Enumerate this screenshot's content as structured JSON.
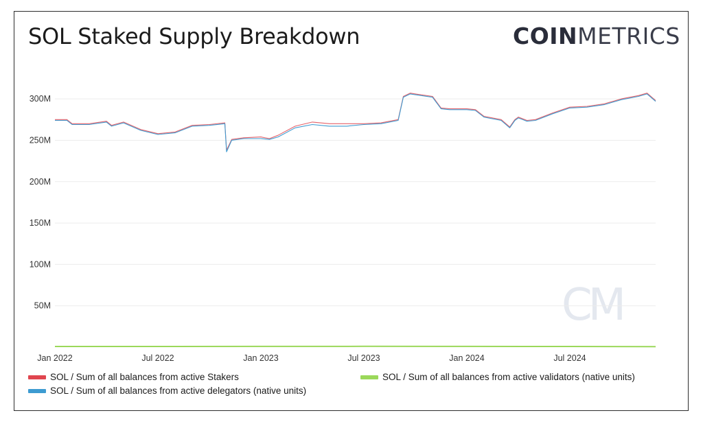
{
  "title": "SOL Staked Supply Breakdown",
  "logo": {
    "bold": "COIN",
    "light": "METRICS",
    "watermark": "CM"
  },
  "chart_data": {
    "type": "line",
    "title": "SOL Staked Supply Breakdown",
    "xlabel": "",
    "ylabel": "",
    "ylim": [
      0,
      320
    ],
    "y_unit": "M",
    "yticks": [
      "50M",
      "100M",
      "150M",
      "200M",
      "250M",
      "300M"
    ],
    "ytick_values": [
      50,
      100,
      150,
      200,
      250,
      300
    ],
    "xlim": [
      0,
      35
    ],
    "xticks": [
      "Jan 2022",
      "Jul 2022",
      "Jan 2023",
      "Jul 2023",
      "Jan 2024",
      "Jul 2024"
    ],
    "xtick_values": [
      0,
      6,
      12,
      18,
      24,
      30
    ],
    "grid": true,
    "legend_position": "bottom",
    "series": [
      {
        "name": "SOL / Sum of all balances from active Stakers",
        "color": "#e0454f",
        "x": [
          0,
          0.7,
          1,
          2,
          3,
          3.3,
          4,
          5,
          6,
          7,
          8,
          9,
          9.9,
          10,
          10.3,
          11,
          12,
          12.5,
          13,
          14,
          15,
          16,
          17,
          18,
          19,
          20,
          20.3,
          20.7,
          21,
          22,
          22.5,
          23,
          24,
          24.5,
          25,
          26,
          26.5,
          26.8,
          27,
          27.5,
          28,
          29,
          30,
          31,
          32,
          33,
          34,
          34.5,
          35
        ],
        "y": [
          275,
          275,
          270,
          270,
          273,
          268,
          272,
          263,
          258,
          260,
          268,
          269,
          271,
          238,
          251,
          253,
          254,
          252,
          256,
          267,
          272,
          270,
          270,
          270,
          271,
          275,
          303,
          307,
          306,
          303,
          289,
          288,
          288,
          287,
          279,
          275,
          266,
          275,
          278,
          274,
          275,
          283,
          290,
          291,
          294,
          300,
          304,
          307,
          298
        ]
      },
      {
        "name": "SOL / Sum of all balances from active delegators (native units)",
        "color": "#3d9bd1",
        "x": [
          0,
          0.7,
          1,
          2,
          3,
          3.3,
          4,
          5,
          6,
          7,
          8,
          9,
          9.9,
          10,
          10.3,
          11,
          12,
          12.5,
          13,
          14,
          15,
          16,
          17,
          18,
          19,
          20,
          20.3,
          20.7,
          21,
          22,
          22.5,
          23,
          24,
          24.5,
          25,
          26,
          26.5,
          26.8,
          27,
          27.5,
          28,
          29,
          30,
          31,
          32,
          33,
          34,
          34.5,
          35
        ],
        "y": [
          274,
          274,
          269,
          269,
          272,
          267,
          271,
          262,
          257,
          259,
          267,
          268,
          270,
          236,
          250,
          252,
          252,
          251,
          254,
          265,
          269,
          267,
          267,
          269,
          270,
          274,
          302,
          306,
          305,
          302,
          288,
          287,
          287,
          286,
          278,
          274,
          265,
          274,
          277,
          273,
          274,
          282,
          289,
          290,
          293,
          299,
          303,
          306,
          297
        ]
      },
      {
        "name": "SOL / Sum of all balances from active validators (native units)",
        "color": "#9bd85a",
        "x": [
          0,
          6,
          12,
          18,
          24,
          30,
          35
        ],
        "y": [
          0.8,
          0.8,
          0.9,
          1.0,
          0.9,
          0.8,
          0.7
        ]
      }
    ]
  }
}
